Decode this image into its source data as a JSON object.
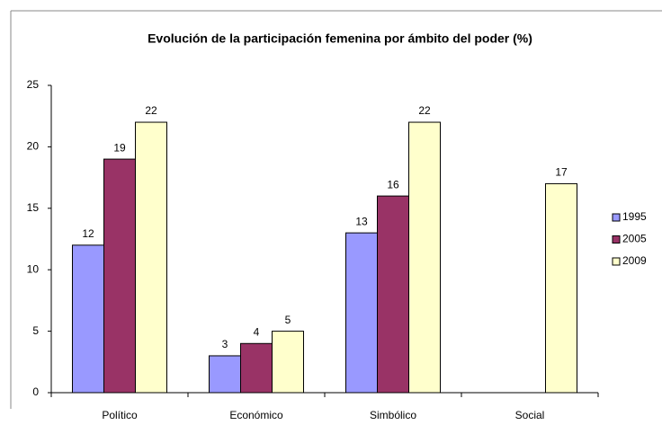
{
  "chart_data": {
    "type": "bar",
    "title": "Evolución de la participación femenina por ámbito del poder (%)",
    "categories": [
      "Político",
      "Económico",
      "Simbólico",
      "Social"
    ],
    "series": [
      {
        "name": "1995",
        "color": "#9999ff",
        "values": [
          12,
          3,
          13,
          null
        ]
      },
      {
        "name": "2005",
        "color": "#993366",
        "values": [
          19,
          4,
          16,
          null
        ]
      },
      {
        "name": "2009",
        "color": "#ffffcc",
        "values": [
          22,
          5,
          22,
          17
        ]
      }
    ],
    "ylim": [
      0,
      25
    ],
    "yticks": [
      0,
      5,
      10,
      15,
      20,
      25
    ],
    "grid": false,
    "legend": "right"
  }
}
